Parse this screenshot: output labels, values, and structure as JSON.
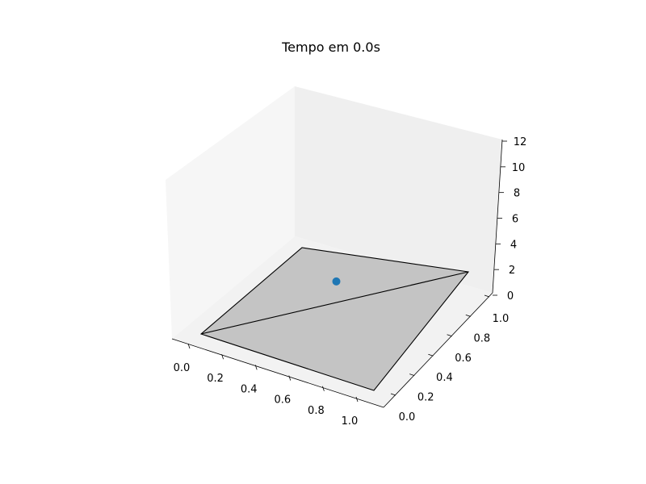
{
  "chart_data": {
    "type": "scatter",
    "projection": "3d",
    "title": "Tempo em 0.0s",
    "xlabel": "",
    "ylabel": "",
    "zlabel": "",
    "xlim": [
      0.0,
      1.0
    ],
    "ylim": [
      0.0,
      1.0
    ],
    "zlim": [
      0,
      12
    ],
    "x_ticks": [
      "0.0",
      "0.2",
      "0.4",
      "0.6",
      "0.8",
      "1.0"
    ],
    "y_ticks": [
      "0.0",
      "0.2",
      "0.4",
      "0.6",
      "0.8",
      "1.0"
    ],
    "z_ticks": [
      "0",
      "2",
      "4",
      "6",
      "8",
      "10",
      "12"
    ],
    "grid": false,
    "surface": {
      "type": "plane",
      "color": "#c4c4c4",
      "edge_color": "#000000",
      "corners": [
        {
          "x": 0.0,
          "y": 0.0,
          "z": 0
        },
        {
          "x": 1.0,
          "y": 0.0,
          "z": 0
        },
        {
          "x": 1.0,
          "y": 1.0,
          "z": 0
        },
        {
          "x": 0.0,
          "y": 1.0,
          "z": 0
        }
      ],
      "diagonal": [
        {
          "x": 0.0,
          "y": 0.0,
          "z": 0
        },
        {
          "x": 1.0,
          "y": 1.0,
          "z": 0
        }
      ]
    },
    "points": [
      {
        "x": 0.5,
        "y": 0.5,
        "z": 2.0
      }
    ],
    "point_color": "#1f77b4"
  }
}
